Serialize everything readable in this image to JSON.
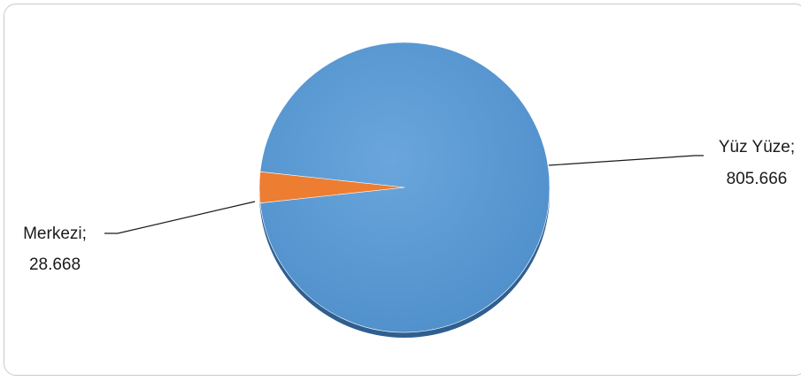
{
  "chart_data": {
    "type": "pie",
    "title": "",
    "slices": [
      {
        "name": "Yüz Yüze",
        "value": 805666,
        "label_name": "Yüz Yüze;",
        "label_value": "805.666",
        "color": "#5b9bd5"
      },
      {
        "name": "Merkezi",
        "value": 28668,
        "label_name": "Merkezi;",
        "label_value": "28.668",
        "color": "#ed7d31"
      }
    ],
    "legend": "none"
  }
}
